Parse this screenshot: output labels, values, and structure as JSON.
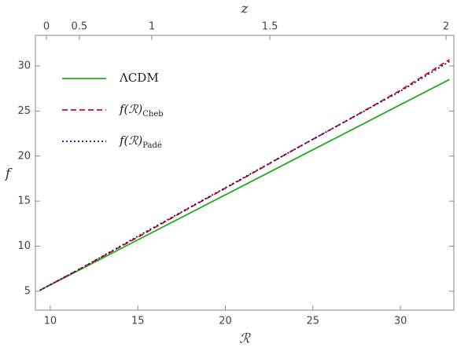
{
  "chart_data": {
    "type": "line",
    "x_label": "ℛ",
    "y_label": "f",
    "x2_label": "z",
    "x": [
      9.4,
      12,
      15,
      18,
      21,
      24,
      27,
      30,
      32.8
    ],
    "series": [
      {
        "name": "ΛCDM",
        "color": "#1faa1f",
        "dash": "solid",
        "values": [
          5.1,
          7.7,
          10.7,
          13.7,
          16.7,
          19.7,
          22.7,
          25.7,
          28.5
        ]
      },
      {
        "name": "f(ℛ)",
        "subscript": "Cheb",
        "color": "#e8001c",
        "dash": "dashed",
        "values": [
          5.1,
          7.8,
          11.0,
          14.3,
          17.5,
          20.8,
          24.0,
          27.3,
          30.7
        ]
      },
      {
        "name": "f(ℛ)",
        "subscript": "Padé",
        "color": "#10107a",
        "dash": "dotted",
        "values": [
          5.1,
          7.8,
          11.1,
          14.35,
          17.55,
          20.8,
          24.0,
          27.2,
          30.5
        ]
      }
    ],
    "xlim": [
      9.15,
      33.05
    ],
    "xticks": [
      10,
      15,
      20,
      25,
      30
    ],
    "ylim": [
      2.9,
      33.4
    ],
    "yticks": [
      5,
      10,
      15,
      20,
      25,
      30
    ],
    "x2ticks": [
      0,
      0.5,
      1,
      1.5,
      2
    ],
    "x2ticks_at_x": [
      9.78,
      11.66,
      15.8,
      22.54,
      32.6
    ],
    "legend": "upper-left",
    "grid": false
  }
}
